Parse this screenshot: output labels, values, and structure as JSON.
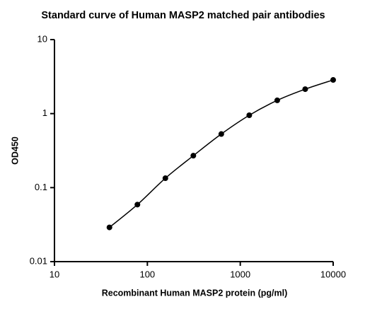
{
  "chart_data": {
    "type": "line",
    "title": "Standard curve of Human MASP2 matched pair antibodies",
    "x_label": "Recombinant Human MASP2 protein (pg/ml)",
    "y_label": "OD450",
    "x": [
      39.0625,
      78.125,
      156.25,
      312.5,
      625,
      1250,
      2500,
      5000,
      10000
    ],
    "values": [
      0.029,
      0.059,
      0.134,
      0.27,
      0.53,
      0.95,
      1.51,
      2.14,
      2.85
    ],
    "color": "#000000",
    "markers": true,
    "smooth": true,
    "x_log": true,
    "y_log": true,
    "xlim": [
      10,
      10000
    ],
    "xticks": [
      10,
      100,
      1000,
      10000
    ],
    "ylim": [
      0.01,
      10
    ],
    "yticks": [
      0.01,
      0.1,
      1,
      10
    ]
  }
}
